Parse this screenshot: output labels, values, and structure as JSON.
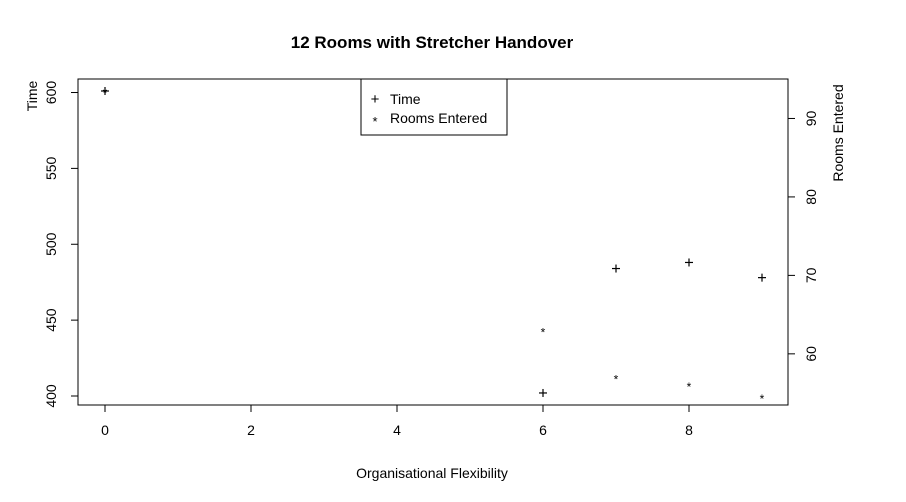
{
  "chart_data": {
    "type": "scatter",
    "title": "12 Rooms with Stretcher Handover",
    "xlabel": "Organisational Flexibility",
    "ylabel_left": "Time",
    "ylabel_right": "Rooms Entered",
    "xlim": [
      0,
      9
    ],
    "ylim_left": [
      400,
      601
    ],
    "ylim_right": [
      54.5,
      93.5
    ],
    "x_ticks": [
      0,
      2,
      4,
      6,
      8
    ],
    "y_left_ticks": [
      400,
      450,
      500,
      550,
      600
    ],
    "y_right_ticks": [
      60,
      70,
      80,
      90
    ],
    "grid": false,
    "legend_position": "top-center",
    "series": [
      {
        "name": "Time",
        "axis": "left",
        "marker": "+",
        "color": "#000000",
        "x": [
          0,
          6,
          7,
          8,
          9
        ],
        "y": [
          601,
          402,
          484,
          488,
          478
        ]
      },
      {
        "name": "Rooms Entered",
        "axis": "right",
        "marker": "*",
        "color": "#e03030",
        "x": [
          0,
          6,
          7,
          8,
          9
        ],
        "y": [
          93.5,
          63,
          57,
          56,
          54.5
        ]
      }
    ]
  }
}
